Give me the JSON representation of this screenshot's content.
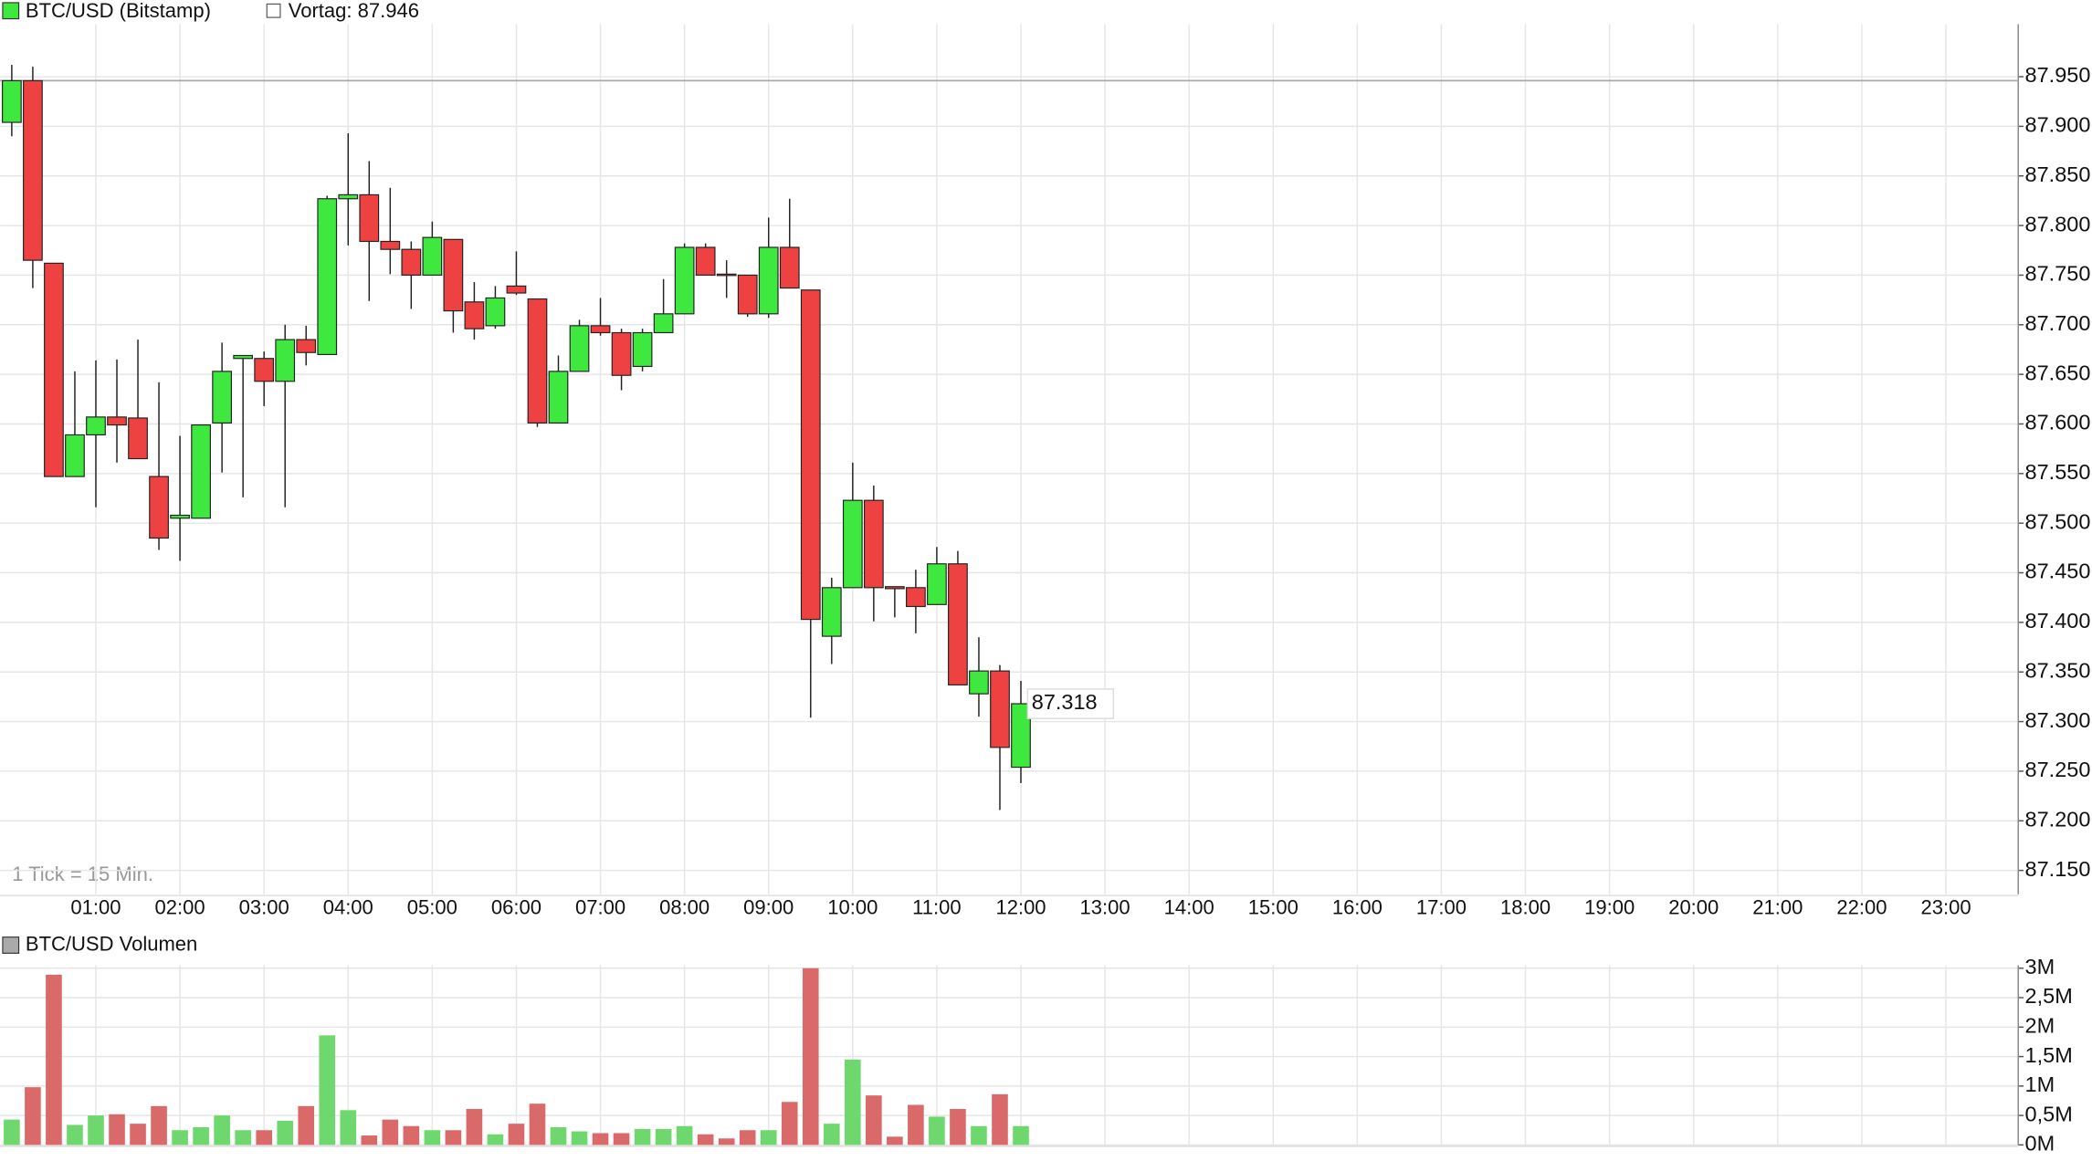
{
  "chart_data": [
    {
      "type": "candlestick",
      "title": "BTC/USD (Bitstamp)",
      "note": "1 Tick = 15 Min.",
      "up_color": "#3ee83e",
      "down_color": "#ee4242",
      "grid": true,
      "reference_line": {
        "value": 87.946,
        "label": "Vortag: 87.946"
      },
      "x": [
        0,
        0.25,
        0.5,
        0.75,
        1,
        1.25,
        1.5,
        1.75,
        2,
        2.25,
        2.5,
        2.75,
        3,
        3.25,
        3.5,
        3.75,
        4,
        4.25,
        4.5,
        4.75,
        5,
        5.25,
        5.5,
        5.75,
        6,
        6.25,
        6.5,
        6.75,
        7,
        7.25,
        7.5,
        7.75,
        8,
        8.25,
        8.5,
        8.75,
        9,
        9.25,
        9.5,
        9.75,
        10,
        10.25,
        10.5,
        10.75,
        11,
        11.25,
        11.5,
        11.75,
        12
      ],
      "open": [
        87.904,
        87.946,
        87.762,
        87.547,
        87.589,
        87.607,
        87.606,
        87.547,
        87.505,
        87.505,
        87.601,
        87.666,
        87.666,
        87.643,
        87.685,
        87.67,
        87.827,
        87.831,
        87.784,
        87.776,
        87.75,
        87.786,
        87.723,
        87.699,
        87.739,
        87.726,
        87.601,
        87.653,
        87.699,
        87.692,
        87.658,
        87.692,
        87.711,
        87.778,
        87.751,
        87.75,
        87.711,
        87.778,
        87.735,
        87.386,
        87.435,
        87.523,
        87.436,
        87.435,
        87.418,
        87.459,
        87.328,
        87.351,
        87.254
      ],
      "high": [
        87.962,
        87.96,
        87.762,
        87.653,
        87.664,
        87.665,
        87.685,
        87.642,
        87.588,
        87.599,
        87.682,
        87.669,
        87.673,
        87.7,
        87.699,
        87.83,
        87.893,
        87.865,
        87.838,
        87.784,
        87.804,
        87.786,
        87.743,
        87.739,
        87.774,
        87.726,
        87.669,
        87.705,
        87.727,
        87.696,
        87.696,
        87.746,
        87.782,
        87.782,
        87.765,
        87.75,
        87.808,
        87.827,
        87.735,
        87.445,
        87.561,
        87.538,
        87.436,
        87.453,
        87.476,
        87.472,
        87.385,
        87.357,
        87.341
      ],
      "low": [
        87.89,
        87.737,
        87.547,
        87.547,
        87.516,
        87.561,
        87.565,
        87.473,
        87.462,
        87.505,
        87.551,
        87.526,
        87.618,
        87.516,
        87.659,
        87.67,
        87.78,
        87.724,
        87.751,
        87.716,
        87.75,
        87.692,
        87.685,
        87.696,
        87.73,
        87.597,
        87.601,
        87.653,
        87.689,
        87.634,
        87.653,
        87.692,
        87.711,
        87.75,
        87.727,
        87.708,
        87.707,
        87.737,
        87.304,
        87.358,
        87.435,
        87.401,
        87.405,
        87.389,
        87.418,
        87.337,
        87.305,
        87.211,
        87.238
      ],
      "close": [
        87.946,
        87.765,
        87.547,
        87.589,
        87.607,
        87.599,
        87.565,
        87.485,
        87.508,
        87.599,
        87.653,
        87.669,
        87.643,
        87.685,
        87.672,
        87.827,
        87.831,
        87.784,
        87.776,
        87.75,
        87.788,
        87.714,
        87.696,
        87.727,
        87.732,
        87.601,
        87.653,
        87.699,
        87.692,
        87.649,
        87.692,
        87.711,
        87.778,
        87.75,
        87.75,
        87.711,
        87.778,
        87.737,
        87.403,
        87.435,
        87.523,
        87.435,
        87.434,
        87.416,
        87.459,
        87.337,
        87.351,
        87.274,
        87.318
      ],
      "xlim": [
        -0.14,
        23.86
      ],
      "xticks": [
        {
          "value": 1,
          "label": "01:00"
        },
        {
          "value": 2,
          "label": "02:00"
        },
        {
          "value": 3,
          "label": "03:00"
        },
        {
          "value": 4,
          "label": "04:00"
        },
        {
          "value": 5,
          "label": "05:00"
        },
        {
          "value": 6,
          "label": "06:00"
        },
        {
          "value": 7,
          "label": "07:00"
        },
        {
          "value": 8,
          "label": "08:00"
        },
        {
          "value": 9,
          "label": "09:00"
        },
        {
          "value": 10,
          "label": "10:00"
        },
        {
          "value": 11,
          "label": "11:00"
        },
        {
          "value": 12,
          "label": "12:00"
        },
        {
          "value": 13,
          "label": "13:00"
        },
        {
          "value": 14,
          "label": "14:00"
        },
        {
          "value": 15,
          "label": "15:00"
        },
        {
          "value": 16,
          "label": "16:00"
        },
        {
          "value": 17,
          "label": "17:00"
        },
        {
          "value": 18,
          "label": "18:00"
        },
        {
          "value": 19,
          "label": "19:00"
        },
        {
          "value": 20,
          "label": "20:00"
        },
        {
          "value": 21,
          "label": "21:00"
        },
        {
          "value": 22,
          "label": "22:00"
        },
        {
          "value": 23,
          "label": "23:00"
        }
      ],
      "ylim": [
        87.126,
        88.003
      ],
      "yticks": [
        {
          "value": 87.15,
          "label": "87.150"
        },
        {
          "value": 87.2,
          "label": "87.200"
        },
        {
          "value": 87.25,
          "label": "87.250"
        },
        {
          "value": 87.3,
          "label": "87.300"
        },
        {
          "value": 87.35,
          "label": "87.350"
        },
        {
          "value": 87.4,
          "label": "87.400"
        },
        {
          "value": 87.45,
          "label": "87.450"
        },
        {
          "value": 87.5,
          "label": "87.500"
        },
        {
          "value": 87.55,
          "label": "87.550"
        },
        {
          "value": 87.6,
          "label": "87.600"
        },
        {
          "value": 87.65,
          "label": "87.650"
        },
        {
          "value": 87.7,
          "label": "87.700"
        },
        {
          "value": 87.75,
          "label": "87.750"
        },
        {
          "value": 87.8,
          "label": "87.800"
        },
        {
          "value": 87.85,
          "label": "87.850"
        },
        {
          "value": 87.9,
          "label": "87.900"
        },
        {
          "value": 87.95,
          "label": "87.950"
        }
      ]
    },
    {
      "type": "bar",
      "title": "BTC/USD Volumen",
      "up_color": "#6ed86e",
      "down_color": "#da6a6a",
      "grid": true,
      "values": [
        0.43,
        0.98,
        2.89,
        0.34,
        0.5,
        0.52,
        0.36,
        0.66,
        0.25,
        0.3,
        0.5,
        0.25,
        0.25,
        0.41,
        0.66,
        1.86,
        0.59,
        0.16,
        0.43,
        0.32,
        0.25,
        0.25,
        0.61,
        0.18,
        0.36,
        0.7,
        0.3,
        0.23,
        0.2,
        0.2,
        0.27,
        0.27,
        0.32,
        0.18,
        0.11,
        0.25,
        0.25,
        0.73,
        3.0,
        0.36,
        1.45,
        0.84,
        0.14,
        0.68,
        0.48,
        0.61,
        0.32,
        0.86,
        0.32
      ],
      "ylim": [
        0,
        3.05
      ],
      "yticks": [
        {
          "value": 0,
          "label": "0M"
        },
        {
          "value": 0.5,
          "label": "0,5M"
        },
        {
          "value": 1,
          "label": "1M"
        },
        {
          "value": 1.5,
          "label": "1,5M"
        },
        {
          "value": 2,
          "label": "2M"
        },
        {
          "value": 2.5,
          "label": "2,5M"
        },
        {
          "value": 3,
          "label": "3M"
        }
      ]
    }
  ]
}
